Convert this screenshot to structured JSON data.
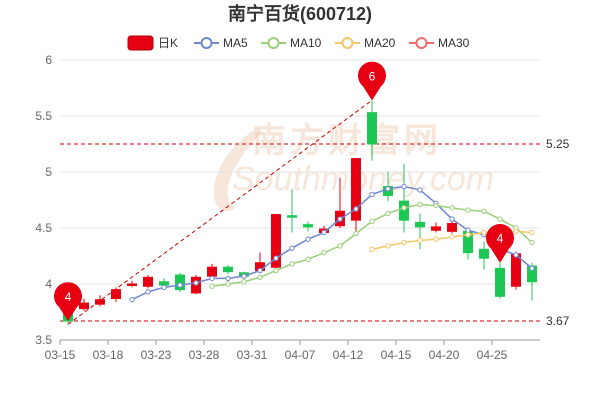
{
  "chart_data": {
    "type": "candlestick",
    "title": "南宁百货(600712)",
    "legend": [
      {
        "name": "日K",
        "color": "#e60012",
        "style": "box"
      },
      {
        "name": "MA5",
        "color": "#6f86d0",
        "style": "line-circle"
      },
      {
        "name": "MA10",
        "color": "#9ad07a",
        "style": "line-circle"
      },
      {
        "name": "MA20",
        "color": "#f5c66a",
        "style": "line-circle"
      },
      {
        "name": "MA30",
        "color": "#f06c6c",
        "style": "line-circle"
      }
    ],
    "up_color": "#e60012",
    "down_color": "#1cc853",
    "yaxis": {
      "min": 3.5,
      "max": 6,
      "ticks": [
        3.5,
        4,
        4.5,
        5,
        5.5,
        6
      ],
      "labels": [
        "3.5",
        "4",
        "4.5",
        "5",
        "5.5",
        "6"
      ]
    },
    "x_tick_labels": [
      "03-15",
      "03-18",
      "03-23",
      "03-28",
      "03-31",
      "04-07",
      "04-12",
      "04-15",
      "04-20",
      "04-25"
    ],
    "x_tick_index": [
      0,
      3,
      6,
      9,
      12,
      15,
      18,
      21,
      24,
      27
    ],
    "candles": [
      {
        "o": 3.88,
        "c": 3.67,
        "h": 3.9,
        "l": 3.64
      },
      {
        "o": 3.78,
        "c": 3.83,
        "h": 3.87,
        "l": 3.76
      },
      {
        "o": 3.82,
        "c": 3.86,
        "h": 3.9,
        "l": 3.8
      },
      {
        "o": 3.87,
        "c": 3.95,
        "h": 3.97,
        "l": 3.84
      },
      {
        "o": 3.99,
        "c": 4.0,
        "h": 4.03,
        "l": 3.97
      },
      {
        "o": 3.98,
        "c": 4.06,
        "h": 4.08,
        "l": 3.96
      },
      {
        "o": 4.02,
        "c": 3.99,
        "h": 4.05,
        "l": 3.96
      },
      {
        "o": 4.08,
        "c": 3.95,
        "h": 4.1,
        "l": 3.93
      },
      {
        "o": 3.92,
        "c": 4.06,
        "h": 4.08,
        "l": 3.91
      },
      {
        "o": 4.07,
        "c": 4.15,
        "h": 4.18,
        "l": 4.05
      },
      {
        "o": 4.15,
        "c": 4.11,
        "h": 4.17,
        "l": 4.09
      },
      {
        "o": 4.1,
        "c": 4.07,
        "h": 4.11,
        "l": 4.05
      },
      {
        "o": 4.12,
        "c": 4.19,
        "h": 4.28,
        "l": 4.1
      },
      {
        "o": 4.15,
        "c": 4.62,
        "h": 4.62,
        "l": 4.13
      },
      {
        "o": 4.61,
        "c": 4.6,
        "h": 4.85,
        "l": 4.46
      },
      {
        "o": 4.53,
        "c": 4.51,
        "h": 4.56,
        "l": 4.47
      },
      {
        "o": 4.46,
        "c": 4.49,
        "h": 4.52,
        "l": 4.44
      },
      {
        "o": 4.52,
        "c": 4.65,
        "h": 4.95,
        "l": 4.5
      },
      {
        "o": 4.57,
        "c": 5.12,
        "h": 5.12,
        "l": 4.45
      },
      {
        "o": 5.53,
        "c": 5.25,
        "h": 5.64,
        "l": 5.1
      },
      {
        "o": 4.87,
        "c": 4.79,
        "h": 5.0,
        "l": 4.74
      },
      {
        "o": 4.74,
        "c": 4.57,
        "h": 5.07,
        "l": 4.46
      },
      {
        "o": 4.55,
        "c": 4.51,
        "h": 4.63,
        "l": 4.31
      },
      {
        "o": 4.48,
        "c": 4.51,
        "h": 4.55,
        "l": 4.46
      },
      {
        "o": 4.47,
        "c": 4.54,
        "h": 4.57,
        "l": 4.45
      },
      {
        "o": 4.47,
        "c": 4.28,
        "h": 4.49,
        "l": 4.22
      },
      {
        "o": 4.31,
        "c": 4.23,
        "h": 4.38,
        "l": 4.13
      },
      {
        "o": 4.14,
        "c": 3.89,
        "h": 4.19,
        "l": 3.87
      },
      {
        "o": 3.98,
        "c": 4.27,
        "h": 4.29,
        "l": 3.95
      },
      {
        "o": 4.16,
        "c": 4.02,
        "h": 4.19,
        "l": 3.85
      }
    ],
    "ma5": [
      null,
      null,
      null,
      null,
      3.86,
      3.93,
      3.97,
      3.99,
      4.01,
      4.05,
      4.05,
      4.07,
      4.12,
      4.23,
      4.32,
      4.4,
      4.46,
      4.58,
      4.67,
      4.8,
      4.85,
      4.87,
      4.84,
      4.72,
      4.58,
      4.48,
      4.44,
      4.31,
      4.26,
      4.14
    ],
    "ma10": [
      null,
      null,
      null,
      null,
      null,
      null,
      null,
      null,
      null,
      3.98,
      4.0,
      4.02,
      4.06,
      4.12,
      4.18,
      4.22,
      4.28,
      4.34,
      4.45,
      4.56,
      4.63,
      4.68,
      4.71,
      4.7,
      4.68,
      4.66,
      4.65,
      4.58,
      4.5,
      4.37
    ],
    "ma20": [
      null,
      null,
      null,
      null,
      null,
      null,
      null,
      null,
      null,
      null,
      null,
      null,
      null,
      null,
      null,
      null,
      null,
      null,
      null,
      4.31,
      4.34,
      4.37,
      4.39,
      4.4,
      4.42,
      4.44,
      4.46,
      4.47,
      4.47,
      4.46
    ],
    "ma30": [],
    "ref_lines": [
      {
        "value": 5.25,
        "label": "5.25"
      },
      {
        "value": 3.67,
        "label": "3.67"
      }
    ],
    "trend_line": {
      "from": 0,
      "to": 19
    },
    "pins": [
      {
        "index": 0,
        "value": 3.67,
        "label": "4"
      },
      {
        "index": 19,
        "value": 5.64,
        "label": "6"
      },
      {
        "index": 27,
        "value": 4.19,
        "label": "4"
      }
    ],
    "watermark": {
      "text_cn": "南方财富网",
      "text_en": "Southmoney.com"
    }
  }
}
